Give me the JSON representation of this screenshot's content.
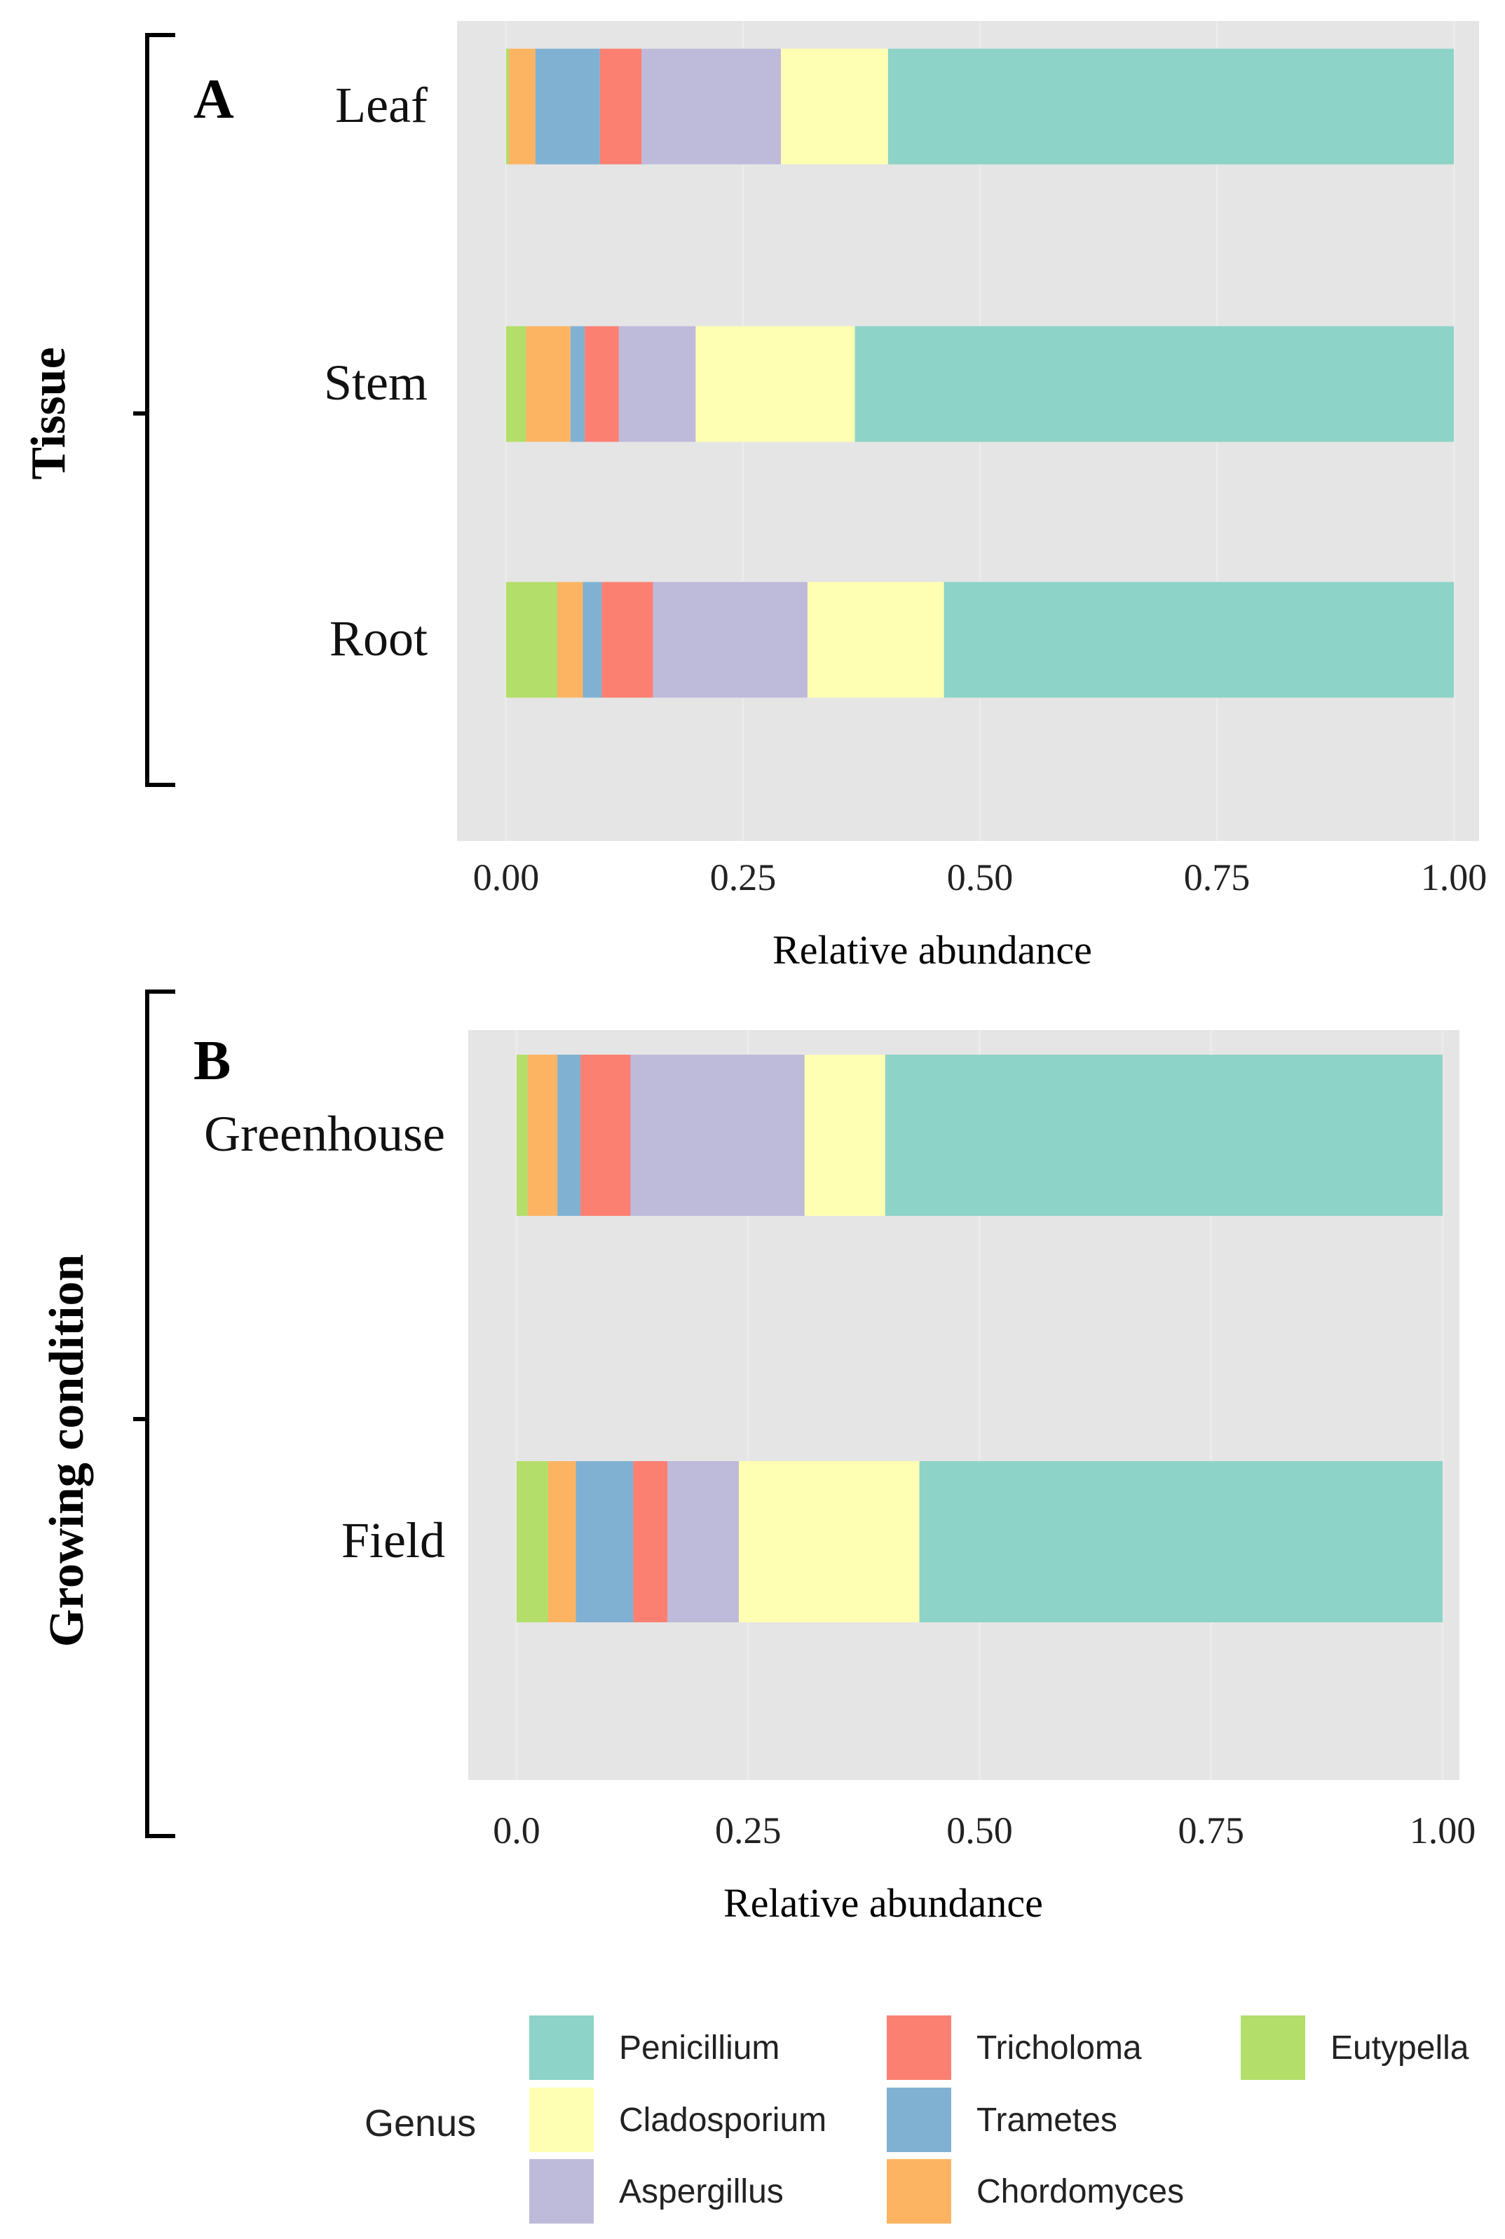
{
  "figure": {
    "legend": {
      "title": "Genus",
      "entries": [
        {
          "name": "Penicillium",
          "color": "#8dd3c7"
        },
        {
          "name": "Cladosporium",
          "color": "#ffffb3"
        },
        {
          "name": "Aspergillus",
          "color": "#bebada"
        },
        {
          "name": "Tricholoma",
          "color": "#fb8072"
        },
        {
          "name": "Trametes",
          "color": "#80b1d3"
        },
        {
          "name": "Chordomyces",
          "color": "#fdb462"
        },
        {
          "name": "Eutypella",
          "color": "#b3de69"
        }
      ]
    },
    "panel_bg": "#e5e5e5"
  },
  "chart_data": [
    {
      "type": "bar",
      "orientation": "horizontal",
      "stacked": true,
      "panel_label": "A",
      "group_label": "Tissue",
      "xlabel": "Relative abundance",
      "xlim": [
        0,
        1
      ],
      "xticks": [
        "0.00",
        "0.25",
        "0.50",
        "0.75",
        "1.00"
      ],
      "categories": [
        "Leaf",
        "Stem",
        "Root"
      ],
      "series": [
        {
          "name": "Eutypella",
          "color": "#b3de69",
          "values": [
            0.003,
            0.021,
            0.054
          ]
        },
        {
          "name": "Chordomyces",
          "color": "#fdb462",
          "values": [
            0.028,
            0.047,
            0.027
          ]
        },
        {
          "name": "Trametes",
          "color": "#80b1d3",
          "values": [
            0.068,
            0.015,
            0.02
          ]
        },
        {
          "name": "Tricholoma",
          "color": "#fb8072",
          "values": [
            0.044,
            0.036,
            0.054
          ]
        },
        {
          "name": "Aspergillus",
          "color": "#bebada",
          "values": [
            0.147,
            0.081,
            0.163
          ]
        },
        {
          "name": "Cladosporium",
          "color": "#ffffb3",
          "values": [
            0.113,
            0.168,
            0.144
          ]
        },
        {
          "name": "Penicillium",
          "color": "#8dd3c7",
          "values": [
            0.597,
            0.632,
            0.538
          ]
        }
      ]
    },
    {
      "type": "bar",
      "orientation": "horizontal",
      "stacked": true,
      "panel_label": "B",
      "group_label": "Growing condition",
      "xlabel": "Relative abundance",
      "xlim": [
        0,
        1
      ],
      "xticks": [
        "0.0",
        "0.25",
        "0.50",
        "0.75",
        "1.00"
      ],
      "categories": [
        "Greenhouse",
        "Field"
      ],
      "series": [
        {
          "name": "Eutypella",
          "color": "#b3de69",
          "values": [
            0.012,
            0.034
          ]
        },
        {
          "name": "Chordomyces",
          "color": "#fdb462",
          "values": [
            0.032,
            0.03
          ]
        },
        {
          "name": "Trametes",
          "color": "#80b1d3",
          "values": [
            0.025,
            0.062
          ]
        },
        {
          "name": "Tricholoma",
          "color": "#fb8072",
          "values": [
            0.054,
            0.037
          ]
        },
        {
          "name": "Aspergillus",
          "color": "#bebada",
          "values": [
            0.188,
            0.077
          ]
        },
        {
          "name": "Cladosporium",
          "color": "#ffffb3",
          "values": [
            0.087,
            0.195
          ]
        },
        {
          "name": "Penicillium",
          "color": "#8dd3c7",
          "values": [
            0.602,
            0.565
          ]
        }
      ]
    }
  ]
}
